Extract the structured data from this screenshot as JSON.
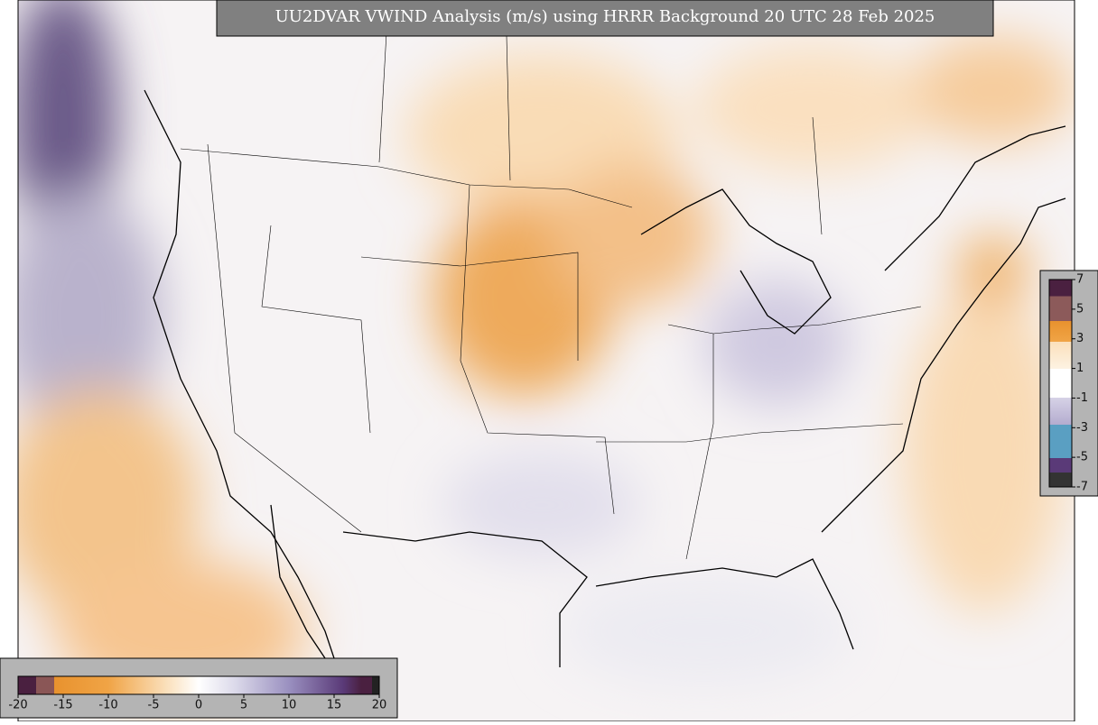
{
  "title": "UU2DVAR VWIND Analysis (m/s) using HRRR Background 20 UTC 28 Feb 2025",
  "bottom_colorbar": {
    "ticks": [
      -20,
      -15,
      -10,
      -5,
      0,
      5,
      10,
      15,
      20
    ]
  },
  "side_colorbar": {
    "ticks": [
      7,
      5,
      3,
      1,
      -1,
      -3,
      -5,
      -7
    ]
  }
}
